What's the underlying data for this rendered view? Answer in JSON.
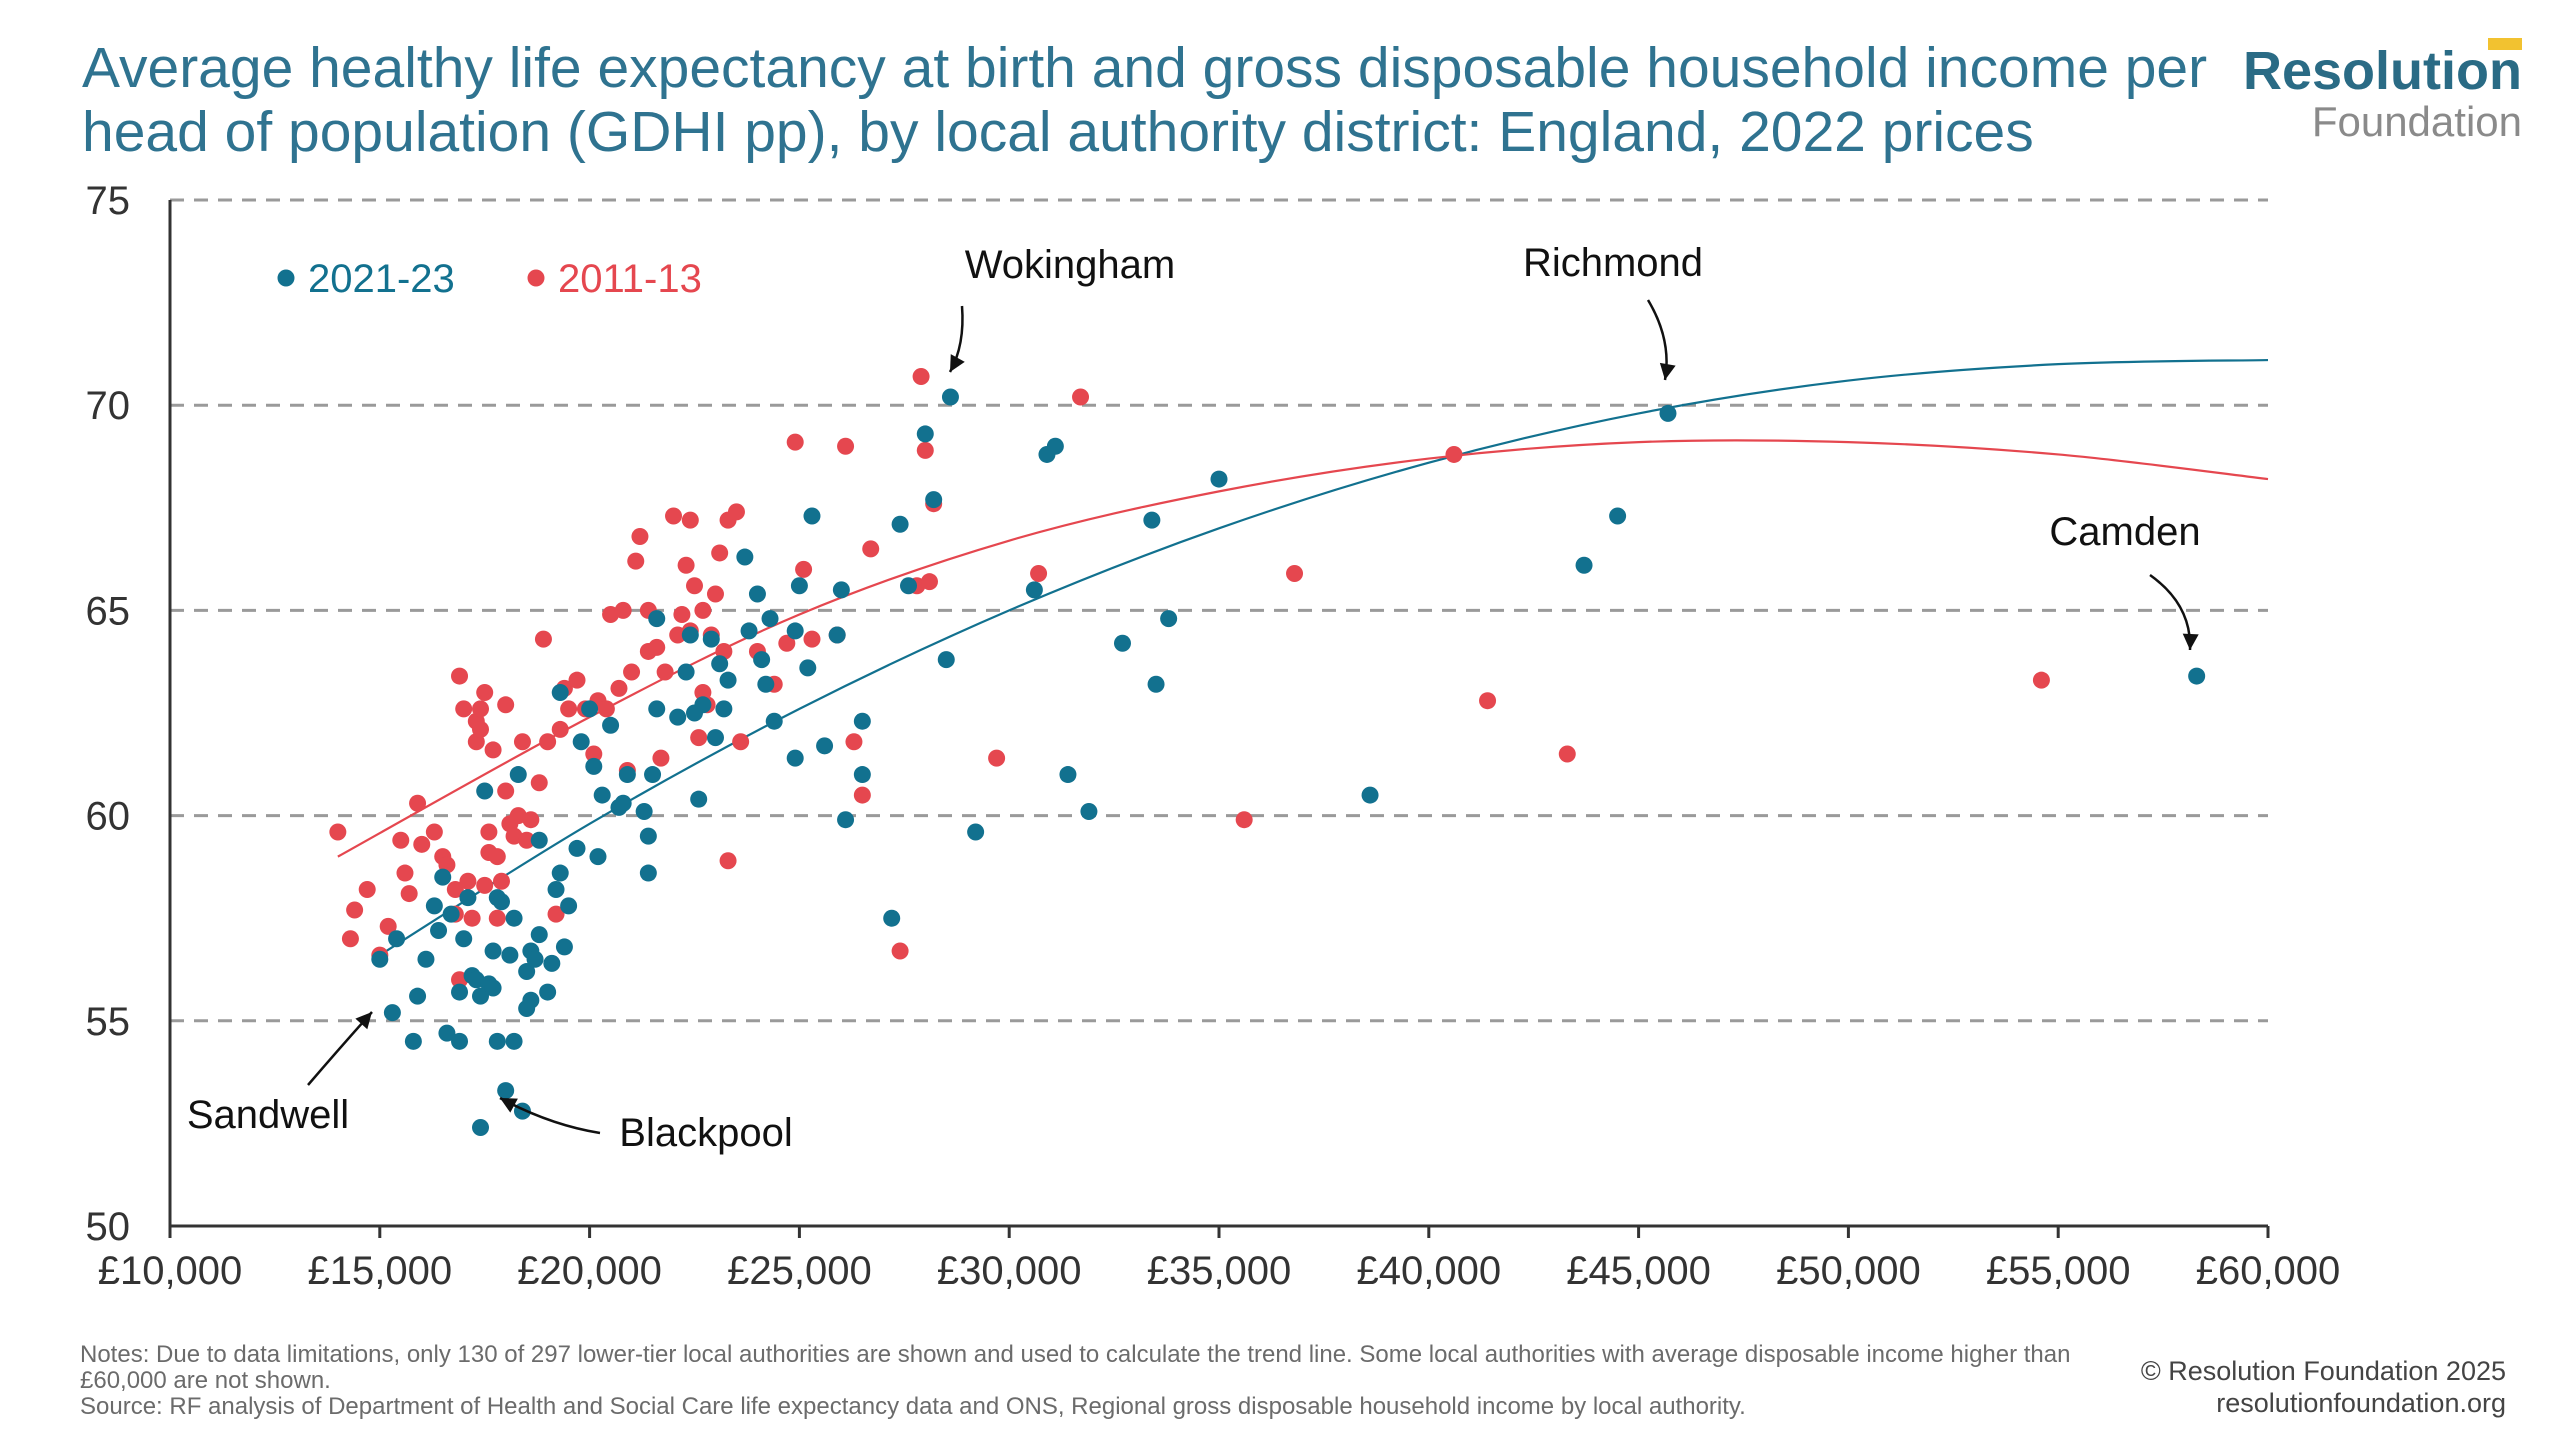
{
  "title": "Average healthy life expectancy at birth and gross disposable household income per head of population (GDHI pp), by local authority district: England, 2022 prices",
  "logo": {
    "main": "Resolution",
    "sub": "Foundation"
  },
  "colors": {
    "series_2021": "#12718f",
    "series_2011": "#e5474f",
    "title": "#2f7390",
    "grid": "#9a9a9a"
  },
  "footer": {
    "notes": "Notes: Due to data limitations, only 130 of 297 lower-tier local authorities are shown and used to calculate the trend line. Some local authorities with average disposable income higher than £60,000 are not shown.",
    "source": "Source: RF analysis of Department of Health and Social Care life expectancy data and ONS, Regional gross disposable household income by local authority.",
    "copyright": "© Resolution Foundation 2025",
    "website": "resolutionfoundation.org"
  },
  "chart_data": {
    "type": "scatter",
    "title": "Average healthy life expectancy at birth and gross disposable household income per head of population (GDHI pp), by local authority district: England, 2022 prices",
    "xlabel": "",
    "ylabel": "",
    "xlim": [
      10000,
      60000
    ],
    "ylim": [
      50,
      75
    ],
    "x_ticks": [
      10000,
      15000,
      20000,
      25000,
      30000,
      35000,
      40000,
      45000,
      50000,
      55000,
      60000
    ],
    "x_tick_labels": [
      "£10,000",
      "£15,000",
      "£20,000",
      "£25,000",
      "£30,000",
      "£35,000",
      "£40,000",
      "£45,000",
      "£50,000",
      "£55,000",
      "£60,000"
    ],
    "y_ticks": [
      50,
      55,
      60,
      65,
      70,
      75
    ],
    "y_tick_labels": [
      "50",
      "55",
      "60",
      "65",
      "70",
      "75"
    ],
    "grid": "horizontal dashed",
    "legend_position": "top-left",
    "series": [
      {
        "name": "2021-23",
        "color": "#12718f",
        "points": [
          [
            15000,
            56.5
          ],
          [
            15300,
            55.2
          ],
          [
            15400,
            57.0
          ],
          [
            15800,
            54.5
          ],
          [
            15900,
            55.6
          ],
          [
            16100,
            56.5
          ],
          [
            16300,
            57.8
          ],
          [
            16400,
            57.2
          ],
          [
            16500,
            58.5
          ],
          [
            16600,
            54.7
          ],
          [
            16700,
            57.6
          ],
          [
            16900,
            55.7
          ],
          [
            16900,
            54.5
          ],
          [
            17000,
            57.0
          ],
          [
            17100,
            58.0
          ],
          [
            17200,
            56.1
          ],
          [
            17300,
            56.0
          ],
          [
            17400,
            55.6
          ],
          [
            17400,
            52.4
          ],
          [
            17500,
            60.6
          ],
          [
            17600,
            55.9
          ],
          [
            17700,
            56.7
          ],
          [
            17700,
            55.8
          ],
          [
            17800,
            54.5
          ],
          [
            17800,
            58.0
          ],
          [
            17900,
            57.9
          ],
          [
            18000,
            53.3
          ],
          [
            18100,
            56.6
          ],
          [
            18200,
            57.5
          ],
          [
            18200,
            54.5
          ],
          [
            18300,
            61.0
          ],
          [
            18400,
            52.8
          ],
          [
            18500,
            55.3
          ],
          [
            18500,
            56.2
          ],
          [
            18600,
            55.5
          ],
          [
            18600,
            56.7
          ],
          [
            18700,
            56.5
          ],
          [
            18800,
            59.4
          ],
          [
            18800,
            57.1
          ],
          [
            19000,
            55.7
          ],
          [
            19100,
            56.4
          ],
          [
            19200,
            58.2
          ],
          [
            19300,
            63.0
          ],
          [
            19300,
            58.6
          ],
          [
            19400,
            56.8
          ],
          [
            19500,
            57.8
          ],
          [
            19700,
            59.2
          ],
          [
            19800,
            61.8
          ],
          [
            20000,
            62.6
          ],
          [
            20100,
            61.2
          ],
          [
            20200,
            59.0
          ],
          [
            20300,
            60.5
          ],
          [
            20500,
            62.2
          ],
          [
            20700,
            60.2
          ],
          [
            20800,
            60.3
          ],
          [
            20900,
            61.0
          ],
          [
            21300,
            60.1
          ],
          [
            21400,
            59.5
          ],
          [
            21400,
            58.6
          ],
          [
            21500,
            61.0
          ],
          [
            21600,
            62.6
          ],
          [
            21600,
            64.8
          ],
          [
            22100,
            62.4
          ],
          [
            22300,
            63.5
          ],
          [
            22400,
            64.4
          ],
          [
            22500,
            62.5
          ],
          [
            22600,
            60.4
          ],
          [
            22700,
            62.7
          ],
          [
            22900,
            64.3
          ],
          [
            23000,
            61.9
          ],
          [
            23100,
            63.7
          ],
          [
            23200,
            62.6
          ],
          [
            23300,
            63.3
          ],
          [
            23700,
            66.3
          ],
          [
            23800,
            64.5
          ],
          [
            24000,
            65.4
          ],
          [
            24100,
            63.8
          ],
          [
            24200,
            63.2
          ],
          [
            24300,
            64.8
          ],
          [
            24400,
            62.3
          ],
          [
            24900,
            64.5
          ],
          [
            24900,
            61.4
          ],
          [
            25000,
            65.6
          ],
          [
            25200,
            63.6
          ],
          [
            25300,
            67.3
          ],
          [
            25600,
            61.7
          ],
          [
            25900,
            64.4
          ],
          [
            26000,
            65.5
          ],
          [
            26100,
            59.9
          ],
          [
            26500,
            62.3
          ],
          [
            26500,
            61.0
          ],
          [
            27200,
            57.5
          ],
          [
            27400,
            67.1
          ],
          [
            27600,
            65.6
          ],
          [
            28000,
            69.3
          ],
          [
            28200,
            67.7
          ],
          [
            28500,
            63.8
          ],
          [
            28600,
            70.2
          ],
          [
            29200,
            59.6
          ],
          [
            30600,
            65.5
          ],
          [
            30900,
            68.8
          ],
          [
            31100,
            69.0
          ],
          [
            31400,
            61.0
          ],
          [
            31900,
            60.1
          ],
          [
            32700,
            64.2
          ],
          [
            33400,
            67.2
          ],
          [
            33500,
            63.2
          ],
          [
            33800,
            64.8
          ],
          [
            35000,
            68.2
          ],
          [
            38600,
            60.5
          ],
          [
            43700,
            66.1
          ],
          [
            44500,
            67.3
          ],
          [
            45700,
            69.8
          ],
          [
            58300,
            63.4
          ]
        ]
      },
      {
        "name": "2011-13",
        "color": "#e5474f",
        "points": [
          [
            14000,
            59.6
          ],
          [
            14300,
            57.0
          ],
          [
            14400,
            57.7
          ],
          [
            14700,
            58.2
          ],
          [
            15000,
            56.6
          ],
          [
            15200,
            57.3
          ],
          [
            15500,
            59.4
          ],
          [
            15600,
            58.6
          ],
          [
            15700,
            58.1
          ],
          [
            15900,
            60.3
          ],
          [
            16000,
            59.3
          ],
          [
            16300,
            59.6
          ],
          [
            16500,
            59.0
          ],
          [
            16600,
            58.8
          ],
          [
            16800,
            58.2
          ],
          [
            16800,
            57.6
          ],
          [
            16900,
            63.4
          ],
          [
            16900,
            56.0
          ],
          [
            17000,
            62.6
          ],
          [
            17100,
            58.4
          ],
          [
            17200,
            57.5
          ],
          [
            17300,
            61.8
          ],
          [
            17300,
            62.3
          ],
          [
            17400,
            62.6
          ],
          [
            17400,
            62.1
          ],
          [
            17500,
            63.0
          ],
          [
            17500,
            58.3
          ],
          [
            17600,
            59.6
          ],
          [
            17600,
            59.1
          ],
          [
            17700,
            61.6
          ],
          [
            17800,
            57.5
          ],
          [
            17800,
            59.0
          ],
          [
            17900,
            58.4
          ],
          [
            18000,
            60.6
          ],
          [
            18000,
            62.7
          ],
          [
            18100,
            59.8
          ],
          [
            18200,
            59.5
          ],
          [
            18300,
            60.0
          ],
          [
            18400,
            61.8
          ],
          [
            18500,
            59.4
          ],
          [
            18600,
            59.9
          ],
          [
            18800,
            60.8
          ],
          [
            18900,
            64.3
          ],
          [
            19000,
            61.8
          ],
          [
            19200,
            57.6
          ],
          [
            19300,
            62.1
          ],
          [
            19400,
            63.1
          ],
          [
            19500,
            62.6
          ],
          [
            19700,
            63.3
          ],
          [
            19900,
            62.6
          ],
          [
            20100,
            61.5
          ],
          [
            20200,
            62.8
          ],
          [
            20400,
            62.6
          ],
          [
            20500,
            64.9
          ],
          [
            20700,
            63.1
          ],
          [
            20800,
            65.0
          ],
          [
            20900,
            61.1
          ],
          [
            21000,
            63.5
          ],
          [
            21100,
            66.2
          ],
          [
            21200,
            66.8
          ],
          [
            21400,
            64.0
          ],
          [
            21400,
            65.0
          ],
          [
            21600,
            64.1
          ],
          [
            21700,
            61.4
          ],
          [
            21800,
            63.5
          ],
          [
            22000,
            67.3
          ],
          [
            22100,
            64.4
          ],
          [
            22200,
            64.9
          ],
          [
            22300,
            66.1
          ],
          [
            22400,
            67.2
          ],
          [
            22400,
            64.5
          ],
          [
            22500,
            65.6
          ],
          [
            22600,
            61.9
          ],
          [
            22700,
            65.0
          ],
          [
            22700,
            63.0
          ],
          [
            22800,
            62.7
          ],
          [
            22900,
            64.4
          ],
          [
            23000,
            65.4
          ],
          [
            23100,
            66.4
          ],
          [
            23200,
            64.0
          ],
          [
            23300,
            67.2
          ],
          [
            23300,
            58.9
          ],
          [
            23500,
            67.4
          ],
          [
            23600,
            61.8
          ],
          [
            24000,
            64.0
          ],
          [
            24400,
            63.2
          ],
          [
            24700,
            64.2
          ],
          [
            24900,
            69.1
          ],
          [
            25100,
            66.0
          ],
          [
            25300,
            64.3
          ],
          [
            25900,
            64.4
          ],
          [
            26100,
            69.0
          ],
          [
            26300,
            61.8
          ],
          [
            26500,
            60.5
          ],
          [
            26700,
            66.5
          ],
          [
            27400,
            56.7
          ],
          [
            27800,
            65.6
          ],
          [
            27900,
            70.7
          ],
          [
            28000,
            68.9
          ],
          [
            28100,
            65.7
          ],
          [
            28200,
            67.6
          ],
          [
            29700,
            61.4
          ],
          [
            30700,
            65.9
          ],
          [
            31700,
            70.2
          ],
          [
            35600,
            59.9
          ],
          [
            36800,
            65.9
          ],
          [
            40600,
            68.8
          ],
          [
            41400,
            62.8
          ],
          [
            43300,
            61.5
          ],
          [
            54600,
            63.3
          ]
        ]
      }
    ],
    "trend_lines": [
      {
        "series": "2021-23",
        "color": "#12718f",
        "points": [
          [
            15000,
            56.6
          ],
          [
            20000,
            59.8
          ],
          [
            25000,
            62.6
          ],
          [
            30000,
            65.0
          ],
          [
            35000,
            67.0
          ],
          [
            40000,
            68.6
          ],
          [
            45000,
            69.8
          ],
          [
            50000,
            70.6
          ],
          [
            55000,
            71.0
          ],
          [
            60000,
            71.1
          ]
        ]
      },
      {
        "series": "2011-13",
        "color": "#e5474f",
        "points": [
          [
            14000,
            59.0
          ],
          [
            20000,
            62.4
          ],
          [
            25000,
            64.9
          ],
          [
            30000,
            66.7
          ],
          [
            35000,
            67.9
          ],
          [
            40000,
            68.7
          ],
          [
            45000,
            69.1
          ],
          [
            50000,
            69.1
          ],
          [
            55000,
            68.8
          ],
          [
            60000,
            68.2
          ]
        ]
      }
    ],
    "annotations": [
      {
        "label": "Wokingham",
        "x": 28600,
        "y": 70.2
      },
      {
        "label": "Richmond",
        "x": 45700,
        "y": 69.8
      },
      {
        "label": "Camden",
        "x": 58300,
        "y": 63.4
      },
      {
        "label": "Sandwell",
        "x": 15000,
        "y": 56.5
      },
      {
        "label": "Blackpool",
        "x": 18000,
        "y": 53.3
      }
    ]
  }
}
